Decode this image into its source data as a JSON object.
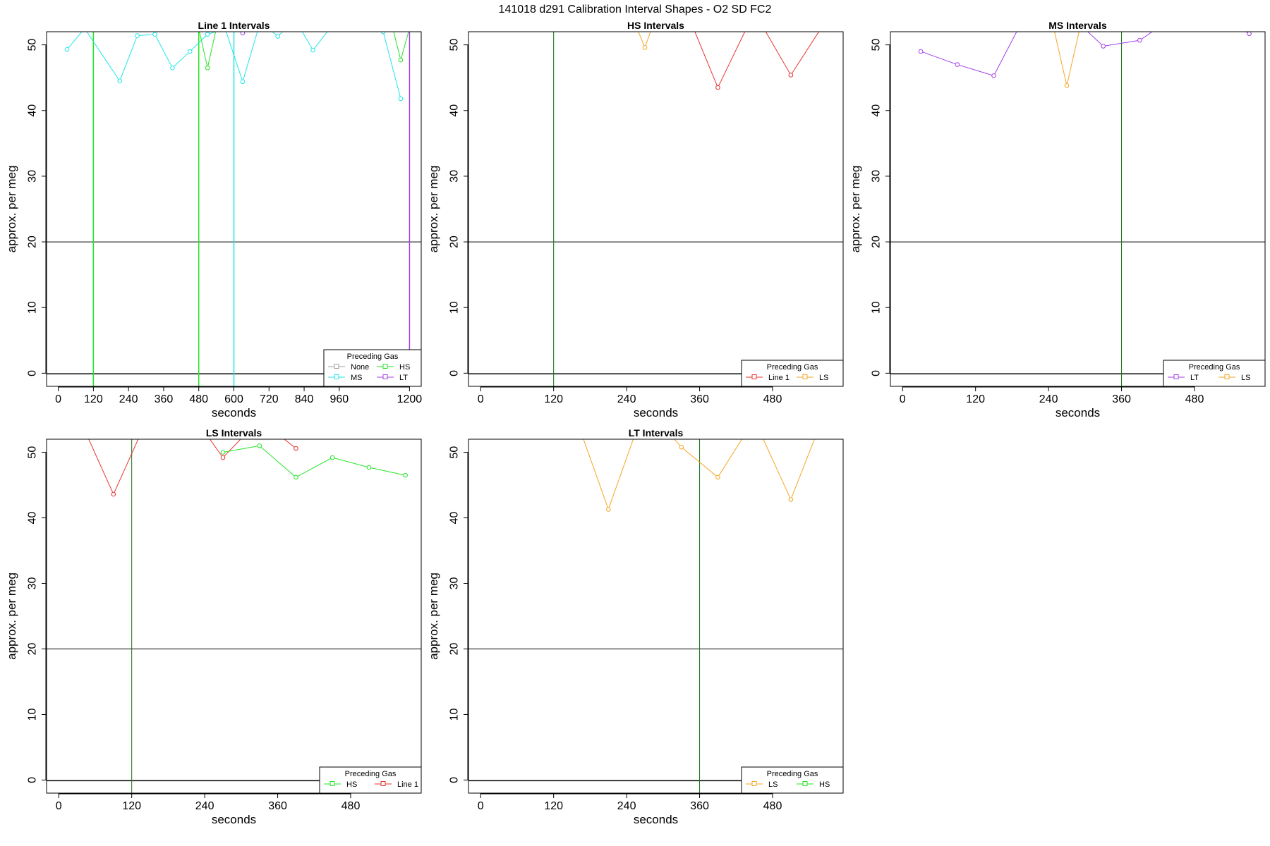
{
  "figure": {
    "title": "141018   d291   Calibration Interval Shapes - O2 SD FC2"
  },
  "colors": {
    "None": "#9e9e9e",
    "MS": "#22e6e6",
    "HS": "#22e622",
    "LT": "#a040e8",
    "Line 1": "#e83232",
    "LS": "#f5a623",
    "ref_green": "#107010",
    "axis": "#000000"
  },
  "chart_data": [
    {
      "type": "line",
      "title": "Line 1 Intervals",
      "xlabel": "seconds",
      "ylabel": "approx. per meg",
      "xlim": [
        -40,
        1240
      ],
      "ylim": [
        -2,
        52
      ],
      "xticks": [
        0,
        120,
        240,
        360,
        480,
        600,
        720,
        840,
        960,
        1200
      ],
      "yticks": [
        0,
        10,
        20,
        30,
        40,
        50
      ],
      "hline": 20,
      "vlines": [
        {
          "x": 120,
          "color": "HS"
        },
        {
          "x": 480,
          "color": "HS"
        },
        {
          "x": 600,
          "color": "MS"
        },
        {
          "x": 1200,
          "color": "LT"
        }
      ],
      "legend": {
        "title": "Preceding Gas",
        "position": "bottom-right",
        "columns": 2,
        "entries": [
          "None",
          "HS",
          "MS",
          "LT"
        ]
      },
      "series": [
        {
          "name": "MS",
          "x": [
            30,
            90,
            210,
            270,
            330,
            390,
            450,
            510,
            570,
            630,
            690,
            750,
            810,
            870,
            930,
            990,
            1050,
            1110,
            1170
          ],
          "y": [
            49.3,
            52.5,
            44.5,
            51.4,
            51.6,
            46.5,
            49.0,
            51.6,
            52.5,
            44.4,
            53.5,
            51.3,
            53.8,
            49.2,
            52.6,
            53.5,
            54.2,
            52.0,
            41.8
          ]
        },
        {
          "name": "HS",
          "x": [
            480,
            510,
            540,
            1140,
            1170,
            1200
          ],
          "y": [
            52.5,
            46.5,
            52.5,
            53.0,
            47.7,
            52.5
          ]
        },
        {
          "name": "LT",
          "x": [
            630
          ],
          "y": [
            51.8
          ]
        }
      ]
    },
    {
      "type": "line",
      "title": "HS Intervals",
      "xlabel": "seconds",
      "ylabel": "approx. per meg",
      "xlim": [
        -20,
        596
      ],
      "ylim": [
        -2,
        52
      ],
      "xticks": [
        0,
        120,
        240,
        360,
        480
      ],
      "yticks": [
        0,
        10,
        20,
        30,
        40,
        50
      ],
      "hline": 20,
      "vlines": [
        {
          "x": 120,
          "color": "ref_green"
        }
      ],
      "legend": {
        "title": "Preceding Gas",
        "position": "bottom-right",
        "columns": 2,
        "entries": [
          "Line 1",
          "LS"
        ]
      },
      "series": [
        {
          "name": "LS",
          "x": [
            255,
            270,
            285
          ],
          "y": [
            53.0,
            49.6,
            53.5
          ]
        },
        {
          "name": "Line 1",
          "x": [
            330,
            390,
            450,
            510,
            570
          ],
          "y": [
            57.0,
            43.5,
            55.0,
            45.4,
            54.0
          ]
        }
      ]
    },
    {
      "type": "line",
      "title": "MS Intervals",
      "xlabel": "seconds",
      "ylabel": "approx. per meg",
      "xlim": [
        -20,
        596
      ],
      "ylim": [
        -2,
        52
      ],
      "xticks": [
        0,
        120,
        240,
        360,
        480
      ],
      "yticks": [
        0,
        10,
        20,
        30,
        40,
        50
      ],
      "hline": 20,
      "vlines": [
        {
          "x": 360,
          "color": "ref_green"
        }
      ],
      "legend": {
        "title": "Preceding Gas",
        "position": "bottom-right",
        "columns": 2,
        "entries": [
          "LT",
          "LS"
        ]
      },
      "series": [
        {
          "name": "LT",
          "x": [
            30,
            90,
            150,
            210,
            270,
            330,
            390,
            450,
            510,
            570
          ],
          "y": [
            49.0,
            47.0,
            45.3,
            56.0,
            55.0,
            49.8,
            50.7,
            54.5,
            55.0,
            51.7
          ]
        },
        {
          "name": "LS",
          "x": [
            240,
            270,
            300
          ],
          "y": [
            56.0,
            43.8,
            56.0
          ]
        }
      ]
    },
    {
      "type": "line",
      "title": "LS Intervals",
      "xlabel": "seconds",
      "ylabel": "approx. per meg",
      "xlim": [
        -20,
        596
      ],
      "ylim": [
        -2,
        52
      ],
      "xticks": [
        0,
        120,
        240,
        360,
        480
      ],
      "yticks": [
        0,
        10,
        20,
        30,
        40,
        50
      ],
      "hline": 20,
      "vlines": [
        {
          "x": 120,
          "color": "ref_green"
        }
      ],
      "legend": {
        "title": "Preceding Gas",
        "position": "bottom-right",
        "columns": 2,
        "entries": [
          "HS",
          "Line 1"
        ]
      },
      "series": [
        {
          "name": "Line 1",
          "x": [
            30,
            90,
            150,
            210,
            270,
            330,
            390
          ],
          "y": [
            56.0,
            43.6,
            56.0,
            57.0,
            49.2,
            55.0,
            50.6
          ]
        },
        {
          "name": "HS",
          "x": [
            270,
            330,
            390,
            450,
            510,
            570
          ],
          "y": [
            50.0,
            51.0,
            46.2,
            49.2,
            47.7,
            46.5
          ]
        }
      ]
    },
    {
      "type": "line",
      "title": "LT Intervals",
      "xlabel": "seconds",
      "ylabel": "approx. per meg",
      "xlim": [
        -20,
        596
      ],
      "ylim": [
        -2,
        52
      ],
      "xticks": [
        0,
        120,
        240,
        360,
        480
      ],
      "yticks": [
        0,
        10,
        20,
        30,
        40,
        50
      ],
      "hline": 20,
      "vlines": [
        {
          "x": 360,
          "color": "ref_green"
        }
      ],
      "legend": {
        "title": "Preceding Gas",
        "position": "bottom-right",
        "columns": 2,
        "entries": [
          "LS",
          "HS"
        ]
      },
      "series": [
        {
          "name": "LS",
          "x": [
            150,
            210,
            270,
            330,
            390,
            450,
            510,
            570
          ],
          "y": [
            57.0,
            41.3,
            57.0,
            50.8,
            46.2,
            55.0,
            42.8,
            57.0
          ]
        }
      ]
    }
  ]
}
